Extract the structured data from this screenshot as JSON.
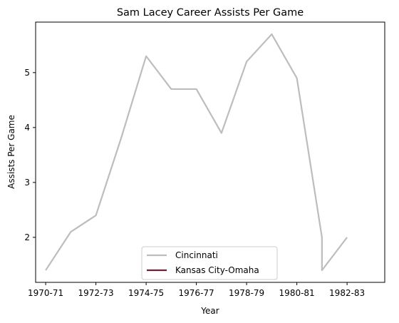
{
  "chart_data": {
    "type": "line",
    "title": "Sam Lacey Career Assists Per Game",
    "xlabel": "Year",
    "ylabel": "Assists Per Game",
    "x_tick_labels": [
      "1970-71",
      "1972-73",
      "1974-75",
      "1976-77",
      "1978-79",
      "1980-81",
      "1982-83"
    ],
    "y_ticks": [
      2,
      3,
      4,
      5
    ],
    "xlim": [
      1969.6,
      1983.5
    ],
    "ylim": [
      1.18,
      5.92
    ],
    "grid": false,
    "legend_position": "lower center",
    "series": [
      {
        "name": "Cincinnati",
        "color": "#bdbdbd",
        "points": [
          {
            "x": 1970,
            "y": 1.4
          },
          {
            "x": 1971,
            "y": 2.1
          },
          {
            "x": 1972,
            "y": 2.4
          },
          {
            "x": 1973,
            "y": 3.8
          },
          {
            "x": 1974,
            "y": 5.3
          },
          {
            "x": 1975,
            "y": 4.7
          },
          {
            "x": 1976,
            "y": 4.7
          },
          {
            "x": 1977,
            "y": 3.9
          },
          {
            "x": 1978,
            "y": 5.2
          },
          {
            "x": 1979,
            "y": 5.7
          },
          {
            "x": 1980,
            "y": 4.9
          },
          {
            "x": 1981,
            "y": 2.0
          },
          {
            "x": 1981,
            "y": 1.4
          },
          {
            "x": 1982,
            "y": 2.0
          }
        ]
      },
      {
        "name": "Kansas City-Omaha",
        "color": "#6b2338",
        "points": []
      }
    ]
  }
}
